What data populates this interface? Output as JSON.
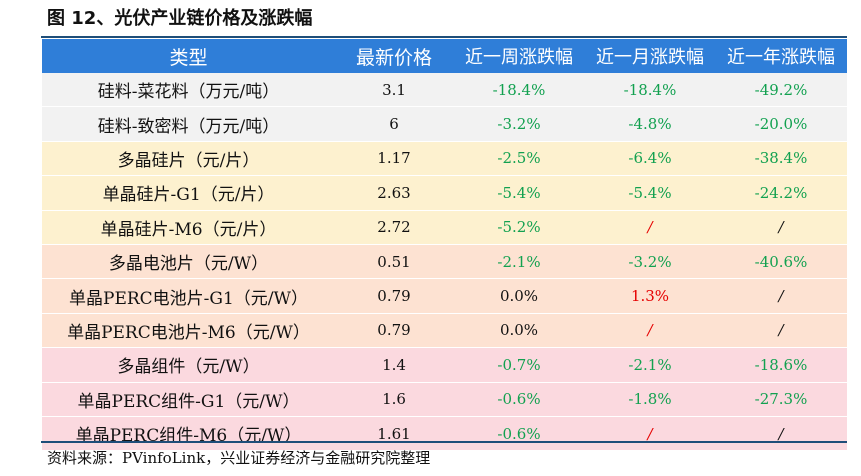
{
  "title": "图 12、光伏产业链价格及涨跌幅",
  "table": {
    "headers": [
      "类型",
      "最新价格",
      "近一周涨跌幅",
      "近一月涨跌幅",
      "近一年涨跌幅"
    ],
    "rows": [
      {
        "name": "硅料-菜花料（万元/吨）",
        "price": "3.1",
        "week": "-18.4%",
        "month": "-18.4%",
        "year": "-49.2%"
      },
      {
        "name": "硅料-致密料（万元/吨）",
        "price": "6",
        "week": "-3.2%",
        "month": "-4.8%",
        "year": "-20.0%"
      },
      {
        "name": "多晶硅片（元/片）",
        "price": "1.17",
        "week": "-2.5%",
        "month": "-6.4%",
        "year": "-38.4%"
      },
      {
        "name": "单晶硅片-G1（元/片）",
        "price": "2.63",
        "week": "-5.4%",
        "month": "-5.4%",
        "year": "-24.2%"
      },
      {
        "name": "单晶硅片-M6（元/片）",
        "price": "2.72",
        "week": "-5.2%",
        "month": "/",
        "year": "/"
      },
      {
        "name": "多晶电池片（元/W）",
        "price": "0.51",
        "week": "-2.1%",
        "month": "-3.2%",
        "year": "-40.6%"
      },
      {
        "name": "单晶PERC电池片-G1（元/W）",
        "price": "0.79",
        "week": "0.0%",
        "month": "1.3%",
        "year": "/"
      },
      {
        "name": "单晶PERC电池片-M6（元/W）",
        "price": "0.79",
        "week": "0.0%",
        "month": "/",
        "year": "/"
      },
      {
        "name": "多晶组件（元/W）",
        "price": "1.4",
        "week": "-0.7%",
        "month": "-2.1%",
        "year": "-18.6%"
      },
      {
        "name": "单晶PERC组件-G1（元/W）",
        "price": "1.6",
        "week": "-0.6%",
        "month": "-1.8%",
        "year": "-27.3%"
      },
      {
        "name": "单晶PERC组件-M6（元/W）",
        "price": "1.61",
        "week": "-0.6%",
        "month": "/",
        "year": "/"
      }
    ]
  },
  "colors": {
    "header_bg": "#2f7ed8",
    "negative": "#12a150",
    "positive": "#e60000",
    "group_silicon": "#f2f2f2",
    "group_wafer": "#fdf1cf",
    "group_cell": "#fde2d2",
    "group_module": "#fbd9df"
  },
  "source": "资料来源：PVinfoLink，兴业证券经济与金融研究院整理"
}
